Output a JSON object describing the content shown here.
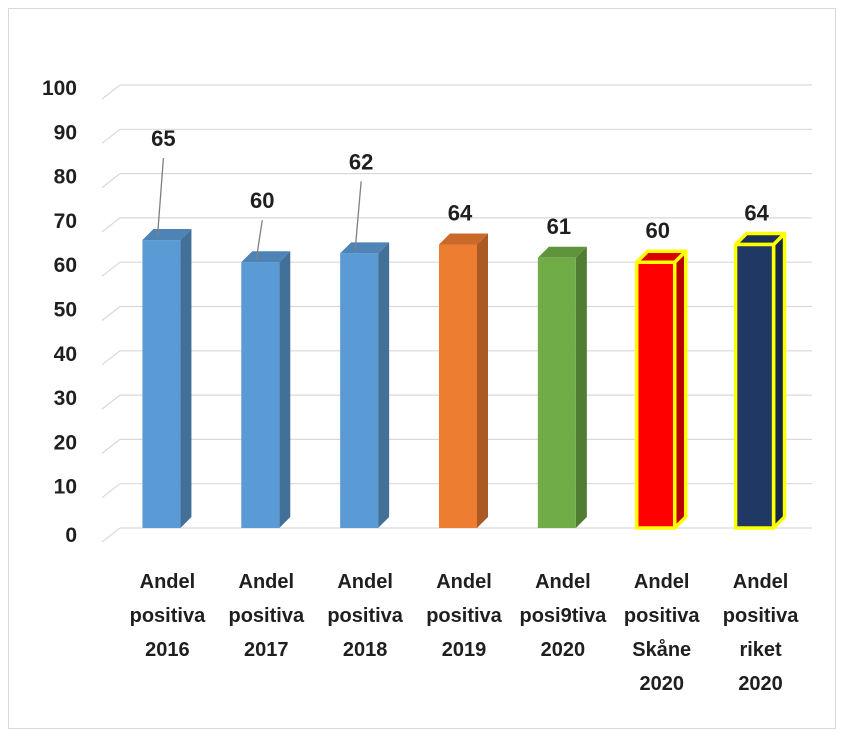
{
  "chart_data": {
    "type": "bar",
    "title": "",
    "xlabel": "",
    "ylabel": "",
    "ylim": [
      0,
      100
    ],
    "yticks": [
      0,
      10,
      20,
      30,
      40,
      50,
      60,
      70,
      80,
      90,
      100
    ],
    "grid": true,
    "legend": "none",
    "categories": [
      [
        "Andel",
        "positiva",
        "2016"
      ],
      [
        "Andel",
        "positiva",
        "2017"
      ],
      [
        "Andel",
        "positiva",
        "2018"
      ],
      [
        "Andel",
        "positiva",
        "2019"
      ],
      [
        "Andel",
        "posi9tiva",
        "2020"
      ],
      [
        "Andel",
        "positiva",
        "Skåne",
        "2020"
      ],
      [
        "Andel",
        "positiva",
        "riket",
        "2020"
      ]
    ],
    "values": [
      65,
      60,
      62,
      64,
      61,
      60,
      64
    ],
    "data_labels": [
      "65",
      "60",
      "62",
      "64",
      "61",
      "60",
      "64"
    ],
    "bar_colors": [
      "#5b9bd5",
      "#5b9bd5",
      "#5b9bd5",
      "#ed7d31",
      "#70ad47",
      "#ff0000",
      "#1f3864"
    ],
    "bar_outline": [
      null,
      null,
      null,
      null,
      null,
      "#ffff00",
      "#ffff00"
    ],
    "gridline_color": "#d9d9d9",
    "text_color": "#1f1f1f"
  }
}
